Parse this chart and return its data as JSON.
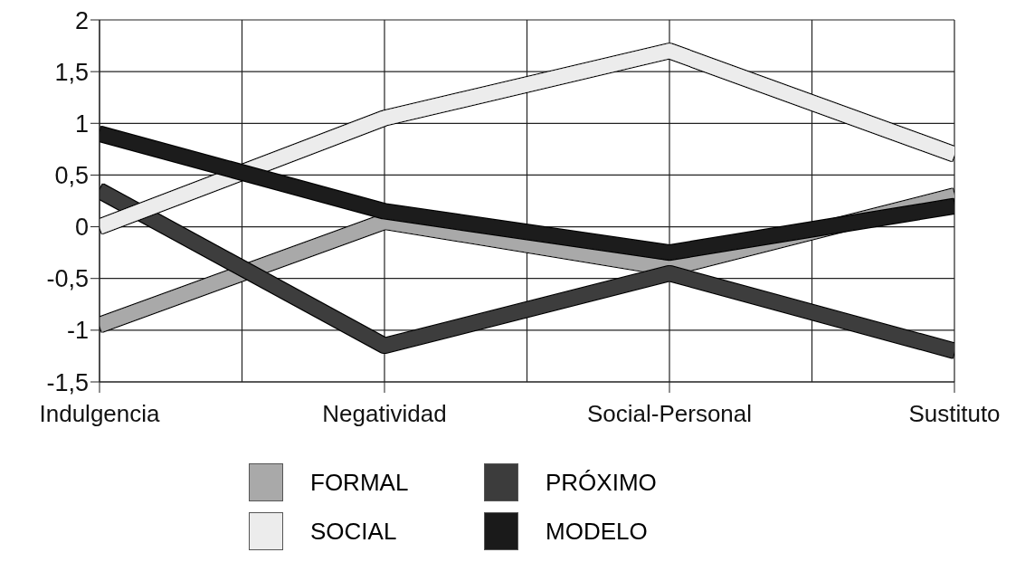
{
  "chart_data": {
    "type": "line",
    "categories": [
      "Indulgencia",
      "Negatividad",
      "Social-Personal",
      "Sustituto"
    ],
    "series": [
      {
        "name": "FORMAL",
        "color": "#a9a9a9",
        "values": [
          -0.95,
          0.05,
          -0.4,
          0.3
        ]
      },
      {
        "name": "PRÓXIMO",
        "color": "#3c3c3c",
        "values": [
          0.35,
          -1.15,
          -0.45,
          -1.2
        ]
      },
      {
        "name": "SOCIAL",
        "color": "#ececec",
        "values": [
          0,
          1.05,
          1.7,
          0.7
        ]
      },
      {
        "name": "MODELO",
        "color": "#1a1a1a",
        "values": [
          0.9,
          0.15,
          -0.25,
          0.2
        ]
      }
    ],
    "ylim": [
      -1.5,
      2
    ],
    "yticks": [
      {
        "value": -1.5,
        "label": "-1,5"
      },
      -1,
      {
        "value": -0.5,
        "label": "-0,5"
      },
      0,
      {
        "value": 0.5,
        "label": "0,5"
      },
      1,
      {
        "value": 1.5,
        "label": "1,5"
      },
      2
    ],
    "grid": true,
    "legend": "bottom",
    "marker": "none",
    "line_style": "solid"
  }
}
